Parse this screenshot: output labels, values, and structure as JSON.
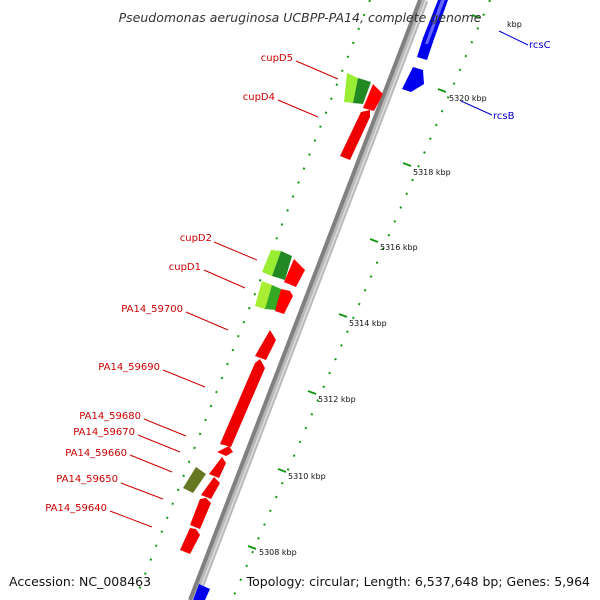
{
  "title": "Pseudomonas aeruginosa UCBPP-PA14, complete genome",
  "footer": {
    "accession": "Accession: NC_008463",
    "summary": "Topology: circular; Length: 6,537,648 bp; Genes: 5,964"
  },
  "kbp_ticks": [
    {
      "label": "5308 kbp"
    },
    {
      "label": "5310 kbp"
    },
    {
      "label": "5312 kbp"
    },
    {
      "label": "5314 kbp"
    },
    {
      "label": "5316 kbp"
    },
    {
      "label": "5318 kbp"
    },
    {
      "label": "5320 kbp"
    },
    {
      "label": "kbp"
    }
  ],
  "genes": [
    {
      "label": "rcsC",
      "color": "#0000cc",
      "strand": "plus"
    },
    {
      "label": "rcsB",
      "color": "#0000cc",
      "strand": "plus"
    },
    {
      "label": "cupD5",
      "color": "#cc0000",
      "strand": "minus"
    },
    {
      "label": "cupD4",
      "color": "#cc0000",
      "strand": "minus"
    },
    {
      "label": "cupD2",
      "color": "#cc0000",
      "strand": "minus"
    },
    {
      "label": "cupD1",
      "color": "#cc0000",
      "strand": "minus"
    },
    {
      "label": "PA14_59700",
      "color": "#cc0000",
      "strand": "minus"
    },
    {
      "label": "PA14_59690",
      "color": "#cc0000",
      "strand": "minus"
    },
    {
      "label": "PA14_59680",
      "color": "#cc0000",
      "strand": "minus"
    },
    {
      "label": "PA14_59670",
      "color": "#cc0000",
      "strand": "minus"
    },
    {
      "label": "PA14_59660",
      "color": "#cc0000",
      "strand": "minus"
    },
    {
      "label": "PA14_59650",
      "color": "#cc0000",
      "strand": "minus"
    },
    {
      "label": "PA14_59640",
      "color": "#cc0000",
      "strand": "minus"
    }
  ],
  "colors": {
    "forward_cds": "#0000ff",
    "reverse_cds": "#ff0000",
    "light_green": "#99ee33",
    "dark_green": "#228822",
    "olive": "#667722",
    "backbone": "#888888",
    "dots": "#119911"
  }
}
